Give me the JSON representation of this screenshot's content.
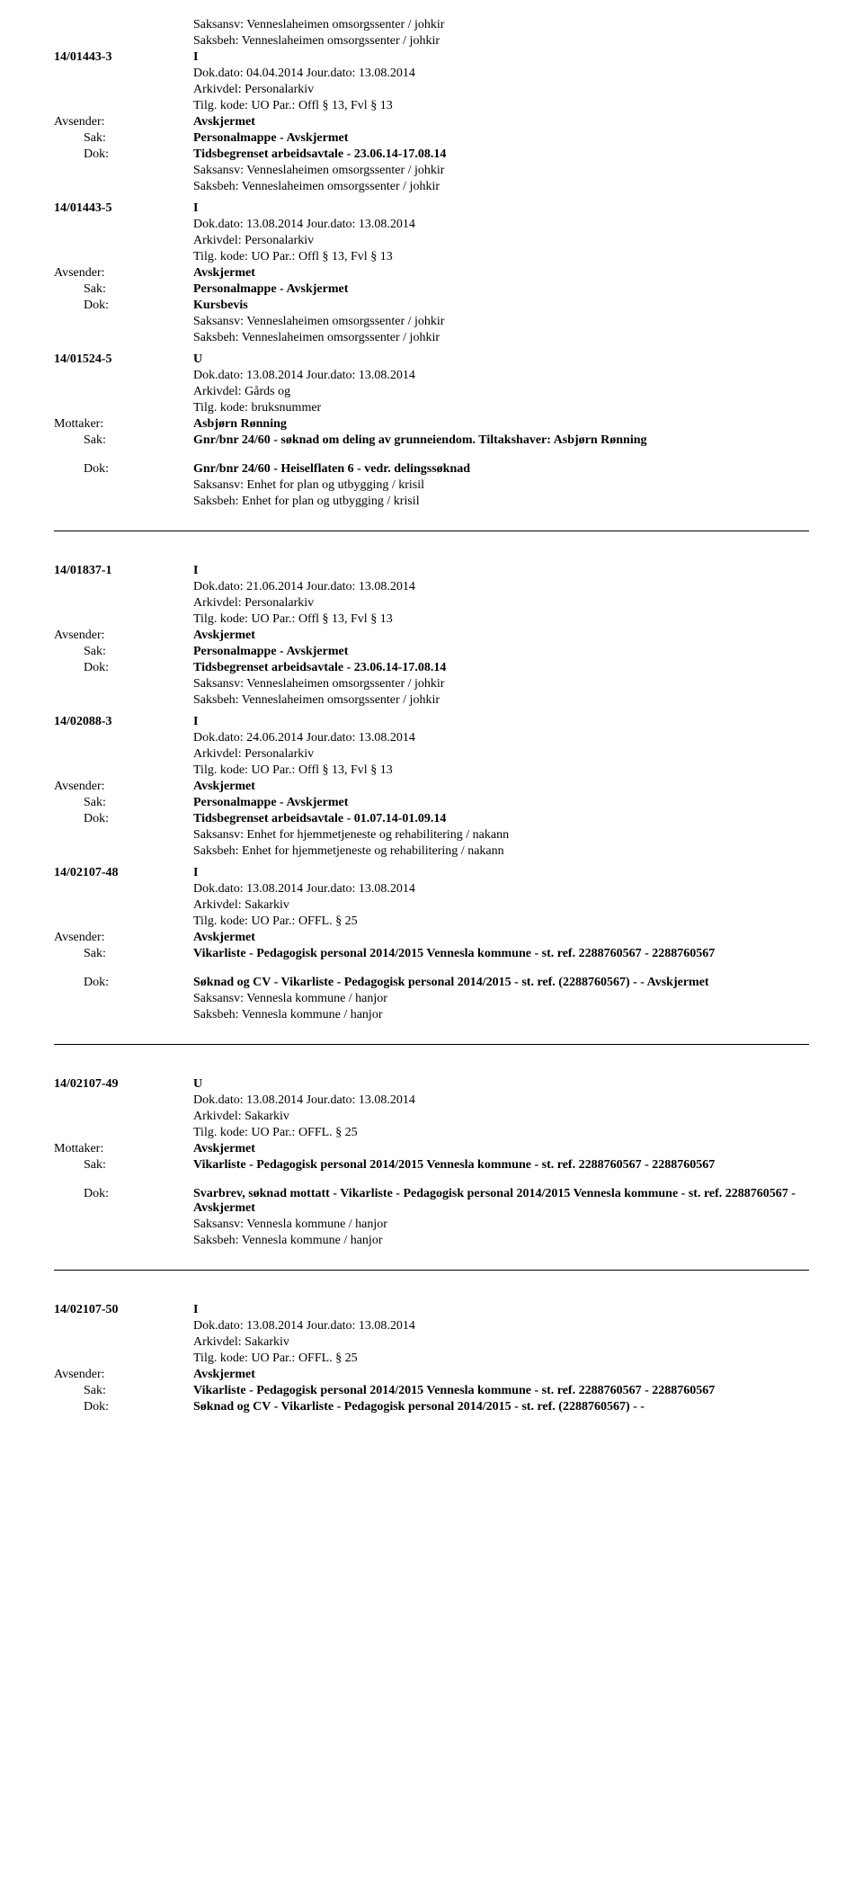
{
  "entries": [
    {
      "preLines": [
        "Saksansv: Venneslaheimen omsorgssenter / johkir",
        "Saksbeh:   Venneslaheimen omsorgssenter / johkir"
      ],
      "caseNum": "14/01443-3",
      "dir": "I",
      "lines": [
        "Dok.dato: 04.04.2014  Jour.dato:   13.08.2014",
        "Arkivdel:      Personalarkiv",
        "Tilg. kode: UO      Par.:  Offl § 13, Fvl § 13"
      ],
      "avsender": {
        "label": "Avsender:",
        "value": "Avskjermet"
      },
      "sak": {
        "label": "Sak:",
        "value": "Personalmappe - Avskjermet"
      },
      "dok": {
        "label": "Dok:",
        "value": "Tidsbegrenset arbeidsavtale - 23.06.14-17.08.14"
      },
      "postLines": [
        "Saksansv: Venneslaheimen omsorgssenter / johkir",
        "Saksbeh:   Venneslaheimen omsorgssenter / johkir"
      ],
      "divider": false
    },
    {
      "caseNum": "14/01443-5",
      "dir": "I",
      "lines": [
        "Dok.dato: 13.08.2014  Jour.dato:   13.08.2014",
        "Arkivdel:      Personalarkiv",
        "Tilg. kode: UO      Par.:  Offl § 13, Fvl § 13"
      ],
      "avsender": {
        "label": "Avsender:",
        "value": "Avskjermet"
      },
      "sak": {
        "label": "Sak:",
        "value": "Personalmappe - Avskjermet"
      },
      "dok": {
        "label": "Dok:",
        "value": "Kursbevis"
      },
      "postLines": [
        "Saksansv: Venneslaheimen omsorgssenter / johkir",
        "Saksbeh:   Venneslaheimen omsorgssenter / johkir"
      ],
      "divider": false
    },
    {
      "caseNum": "14/01524-5",
      "dir": "U",
      "lines": [
        "Dok.dato: 13.08.2014  Jour.dato:    13.08.2014",
        "Arkivdel:       Gårds og",
        "Tilg. kode:  bruksnummer"
      ],
      "mottaker": {
        "label": "Mottaker:",
        "value": "Asbjørn Rønning"
      },
      "sak": {
        "label": "Sak:",
        "value": "Gnr/bnr 24/60 - søknad om deling av grunneiendom. Tiltakshaver: Asbjørn Rønning"
      },
      "dok": {
        "label": "Dok:",
        "value": "Gnr/bnr 24/60 - Heiselflaten 6 - vedr. delingssøknad"
      },
      "postLines": [
        "Saksansv: Enhet for plan og utbygging / krisil",
        "Saksbeh:   Enhet for plan og utbygging / krisil"
      ],
      "divider": true,
      "bigGap": true
    },
    {
      "caseNum": "14/01837-1",
      "dir": "I",
      "lines": [
        "Dok.dato: 21.06.2014  Jour.dato:   13.08.2014",
        "Arkivdel:      Personalarkiv",
        "Tilg. kode: UO      Par.:  Offl § 13, Fvl § 13"
      ],
      "avsender": {
        "label": "Avsender:",
        "value": "Avskjermet"
      },
      "sak": {
        "label": "Sak:",
        "value": "Personalmappe - Avskjermet"
      },
      "dok": {
        "label": "Dok:",
        "value": "Tidsbegrenset arbeidsavtale - 23.06.14-17.08.14"
      },
      "postLines": [
        "Saksansv: Venneslaheimen omsorgssenter / johkir",
        "Saksbeh:   Venneslaheimen omsorgssenter / johkir"
      ],
      "divider": false
    },
    {
      "caseNum": "14/02088-3",
      "dir": "I",
      "lines": [
        "Dok.dato: 24.06.2014  Jour.dato:   13.08.2014",
        "Arkivdel:      Personalarkiv",
        "Tilg. kode: UO      Par.:  Offl § 13, Fvl § 13"
      ],
      "avsender": {
        "label": "Avsender:",
        "value": "Avskjermet"
      },
      "sak": {
        "label": "Sak:",
        "value": "Personalmappe - Avskjermet"
      },
      "dok": {
        "label": "Dok:",
        "value": "Tidsbegrenset arbeidsavtale - 01.07.14-01.09.14"
      },
      "postLines": [
        "Saksansv: Enhet for hjemmetjeneste og rehabilitering / nakann",
        "Saksbeh:   Enhet for hjemmetjeneste og rehabilitering / nakann"
      ],
      "divider": false
    },
    {
      "caseNum": "14/02107-48",
      "dir": "I",
      "lines": [
        "Dok.dato: 13.08.2014  Jour.dato:   13.08.2014",
        "Arkivdel:       Sakarkiv",
        "Tilg. kode: UO      Par.:  OFFL. § 25"
      ],
      "avsender": {
        "label": "Avsender:",
        "value": "Avskjermet"
      },
      "sak": {
        "label": "Sak:",
        "value": "Vikarliste - Pedagogisk personal 2014/2015 Vennesla kommune - st. ref. 2288760567 - 2288760567"
      },
      "dok": {
        "label": "Dok:",
        "value": "Søknad og CV - Vikarliste - Pedagogisk personal 2014/2015 - st. ref. (2288760567) - - Avskjermet"
      },
      "postLines": [
        "Saksansv: Vennesla kommune / hanjor",
        "Saksbeh:   Vennesla kommune / hanjor"
      ],
      "divider": true,
      "bigGap": true
    },
    {
      "caseNum": "14/02107-49",
      "dir": "U",
      "lines": [
        "Dok.dato: 13.08.2014  Jour.dato:    13.08.2014",
        "Arkivdel:       Sakarkiv",
        "Tilg. kode: UO      Par.:  OFFL. § 25"
      ],
      "mottaker": {
        "label": "Mottaker:",
        "value": "Avskjermet"
      },
      "sak": {
        "label": "Sak:",
        "value": "Vikarliste - Pedagogisk personal 2014/2015 Vennesla kommune - st. ref. 2288760567 - 2288760567"
      },
      "dok": {
        "label": "Dok:",
        "value": "Svarbrev, søknad mottatt - Vikarliste - Pedagogisk personal 2014/2015 Vennesla kommune - st. ref. 2288760567 - Avskjermet"
      },
      "postLines": [
        "Saksansv: Vennesla kommune / hanjor",
        "Saksbeh:   Vennesla kommune / hanjor"
      ],
      "divider": true,
      "bigGap": true
    },
    {
      "caseNum": "14/02107-50",
      "dir": "I",
      "lines": [
        "Dok.dato: 13.08.2014  Jour.dato:   13.08.2014",
        "Arkivdel:       Sakarkiv",
        "Tilg. kode: UO      Par.:  OFFL. § 25"
      ],
      "avsender": {
        "label": "Avsender:",
        "value": "Avskjermet"
      },
      "sak": {
        "label": "Sak:",
        "value": "Vikarliste - Pedagogisk personal 2014/2015 Vennesla kommune - st. ref. 2288760567 - 2288760567"
      },
      "dok": {
        "label": "Dok:",
        "value": "Søknad og CV - Vikarliste - Pedagogisk personal 2014/2015 - st. ref. (2288760567) - -"
      },
      "divider": false
    }
  ]
}
